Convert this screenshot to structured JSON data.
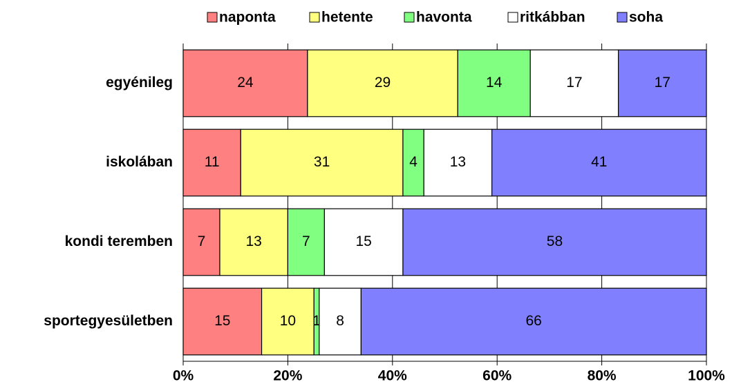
{
  "chart_data": {
    "type": "bar",
    "orientation": "horizontal",
    "stack_mode": "percent",
    "categories": [
      "egyénileg",
      "iskolában",
      "kondi teremben",
      "sportegyesületben"
    ],
    "series": [
      {
        "name": "naponta",
        "color": "#ff8080",
        "values": [
          24,
          11,
          7,
          15
        ]
      },
      {
        "name": "hetente",
        "color": "#ffff80",
        "values": [
          29,
          31,
          13,
          10
        ]
      },
      {
        "name": "havonta",
        "color": "#80ff80",
        "values": [
          14,
          4,
          7,
          1
        ]
      },
      {
        "name": "ritkábban",
        "color": "#ffffff",
        "values": [
          17,
          13,
          15,
          8
        ]
      },
      {
        "name": "soha",
        "color": "#8080ff",
        "values": [
          17,
          41,
          58,
          66
        ]
      }
    ],
    "xlim": [
      0,
      100
    ],
    "xticks": [
      {
        "value": 0,
        "label": "0%"
      },
      {
        "value": 20,
        "label": "20%"
      },
      {
        "value": 40,
        "label": "40%"
      },
      {
        "value": 60,
        "label": "60%"
      },
      {
        "value": 80,
        "label": "80%"
      },
      {
        "value": 100,
        "label": "100%"
      }
    ],
    "grid": true,
    "legend": "top"
  }
}
